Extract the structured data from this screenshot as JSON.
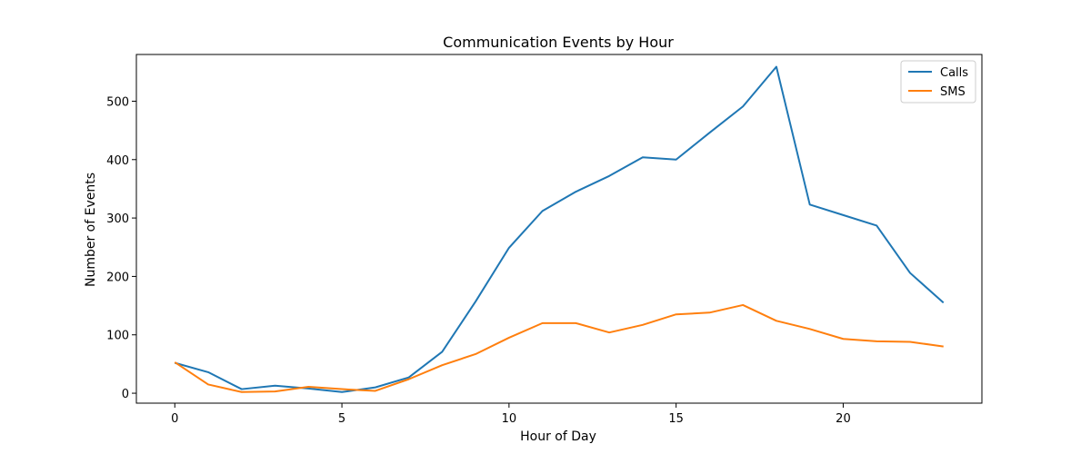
{
  "chart_data": {
    "type": "line",
    "title": "Communication Events by Hour",
    "xlabel": "Hour of Day",
    "ylabel": "Number of Events",
    "xlim": [
      -1.15,
      24.15
    ],
    "ylim": [
      -17,
      580
    ],
    "xticks": [
      0,
      5,
      10,
      15,
      20
    ],
    "yticks": [
      0,
      100,
      200,
      300,
      400,
      500
    ],
    "grid": false,
    "legend_position": "top-right",
    "x": [
      0,
      1,
      2,
      3,
      4,
      5,
      6,
      7,
      8,
      9,
      10,
      11,
      12,
      13,
      14,
      15,
      16,
      17,
      18,
      19,
      20,
      21,
      22,
      23
    ],
    "series": [
      {
        "name": "Calls",
        "color": "#1f77b4",
        "values": [
          52,
          36,
          7,
          13,
          8,
          2,
          10,
          27,
          71,
          157,
          249,
          312,
          345,
          372,
          404,
          400,
          446,
          491,
          559,
          323,
          305,
          287,
          206,
          155
        ]
      },
      {
        "name": "SMS",
        "color": "#ff7f0e",
        "values": [
          53,
          15,
          2,
          3,
          11,
          7,
          4,
          24,
          48,
          67,
          95,
          120,
          120,
          104,
          117,
          135,
          138,
          151,
          124,
          110,
          93,
          89,
          88,
          80
        ]
      }
    ]
  }
}
